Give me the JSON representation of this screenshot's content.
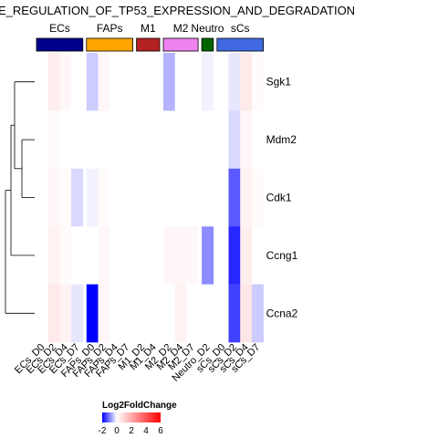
{
  "chart_data": {
    "type": "heatmap",
    "title": "E_REGULATION_OF_TP53_EXPRESSION_AND_DEGRADATION",
    "rows": [
      "Sgk1",
      "Mdm2",
      "Cdk1",
      "Ccng1",
      "Ccna2"
    ],
    "columns": [
      "ECs_D0",
      "ECs_D2",
      "ECs_D4",
      "ECs_D7",
      "FAPs_D0",
      "FAPs_D2",
      "FAPs_D4",
      "FAPs_D7",
      "M1_D2",
      "M1_D4",
      "M2_D2",
      "M2_D4",
      "M2_D7",
      "Neutro_D2",
      "sCs_D0",
      "sCs_D2",
      "sCs_D4",
      "sCs_D7"
    ],
    "groups": [
      {
        "name": "ECs",
        "color": "#00008b",
        "columns": 4
      },
      {
        "name": "FAPs",
        "color": "#ffa500",
        "columns": 4
      },
      {
        "name": "M1",
        "color": "#b22222",
        "columns": 2
      },
      {
        "name": "M2",
        "color": "#ee82ee",
        "columns": 3
      },
      {
        "name": "Neutro",
        "color": "#006400",
        "columns": 1
      },
      {
        "name": "sCs",
        "color": "#4169e1",
        "columns": 4
      }
    ],
    "values": [
      [
        0.0,
        0.4,
        0.2,
        0.0,
        -0.4,
        0.2,
        0.0,
        0.0,
        0.0,
        0.0,
        -0.6,
        0.0,
        0.0,
        -0.1,
        0.0,
        -0.2,
        0.5,
        0.1
      ],
      [
        0.0,
        0.1,
        0.0,
        0.0,
        0.0,
        0.0,
        0.0,
        0.0,
        0.0,
        0.0,
        0.0,
        0.0,
        0.0,
        0.0,
        0.0,
        -0.3,
        0.2,
        0.0
      ],
      [
        0.0,
        0.2,
        0.1,
        -0.3,
        -0.1,
        0.1,
        0.0,
        0.0,
        0.0,
        0.0,
        0.0,
        0.0,
        0.0,
        0.0,
        0.0,
        -1.3,
        0.3,
        0.1
      ],
      [
        0.0,
        0.3,
        0.1,
        0.0,
        0.0,
        0.2,
        0.0,
        0.0,
        0.0,
        0.0,
        0.2,
        0.2,
        0.2,
        -0.9,
        0.0,
        -1.7,
        0.4,
        0.0
      ],
      [
        0.0,
        0.5,
        0.3,
        -0.2,
        -2.0,
        0.2,
        0.0,
        0.0,
        0.0,
        0.0,
        0.0,
        0.3,
        0.0,
        0.0,
        0.0,
        -1.5,
        0.6,
        -0.4
      ]
    ],
    "legend": {
      "title": "Log2FoldChange",
      "ticks": [
        -2,
        0,
        2,
        4,
        6
      ],
      "range": [
        -2,
        6
      ],
      "colors": {
        "low": "#0000ff",
        "mid": "#ffffff",
        "high": "#ff0000"
      }
    }
  }
}
